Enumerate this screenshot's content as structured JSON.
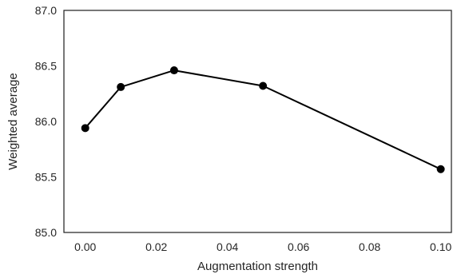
{
  "chart_data": {
    "type": "line",
    "title": "",
    "xlabel": "Augmentation strength",
    "ylabel": "Weighted average",
    "xlim": [
      -0.006,
      0.103
    ],
    "ylim": [
      85.0,
      87.0
    ],
    "x_ticks": [
      0.0,
      0.02,
      0.04,
      0.06,
      0.08,
      0.1
    ],
    "x_tick_labels": [
      "0.00",
      "0.02",
      "0.04",
      "0.06",
      "0.08",
      "0.10"
    ],
    "y_ticks": [
      85.0,
      85.5,
      86.0,
      86.5,
      87.0
    ],
    "y_tick_labels": [
      "85.0",
      "85.5",
      "86.0",
      "86.5",
      "87.0"
    ],
    "grid": false,
    "series": [
      {
        "x": [
          0.0,
          0.01,
          0.025,
          0.05,
          0.1
        ],
        "y": [
          85.94,
          86.31,
          86.46,
          86.32,
          85.57
        ],
        "color": "#000000",
        "marker": "circle"
      }
    ]
  }
}
